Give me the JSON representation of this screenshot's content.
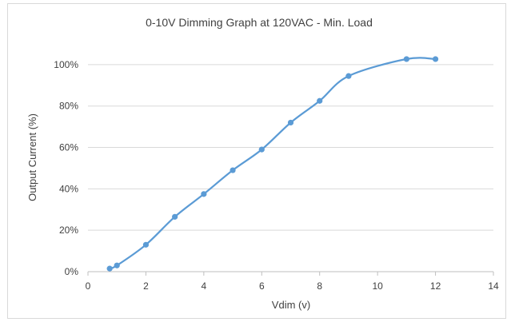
{
  "chart_data": {
    "type": "scatter",
    "title": "0-10V Dimming Graph at 120VAC - Min. Load",
    "xlabel": "Vdim (v)",
    "ylabel": "Output Current (%)",
    "xlim": [
      0,
      14
    ],
    "ylim": [
      0,
      1.1
    ],
    "x_ticks": [
      "0",
      "2",
      "4",
      "6",
      "8",
      "10",
      "12",
      "14"
    ],
    "y_ticks": [
      "0%",
      "20%",
      "40%",
      "60%",
      "80%",
      "100%"
    ],
    "grid": "horizontal",
    "legend": "none",
    "smooth_line": true,
    "series_color": "#5b9bd5",
    "series": [
      {
        "x": [
          0.75,
          1.0,
          2.0,
          3.0,
          4.0,
          5.0,
          6.0,
          7.0,
          8.0,
          9.0,
          11.0,
          12.0
        ],
        "y": [
          0.015,
          0.03,
          0.13,
          0.265,
          0.375,
          0.49,
          0.59,
          0.72,
          0.825,
          0.945,
          1.027,
          1.027
        ]
      }
    ]
  }
}
